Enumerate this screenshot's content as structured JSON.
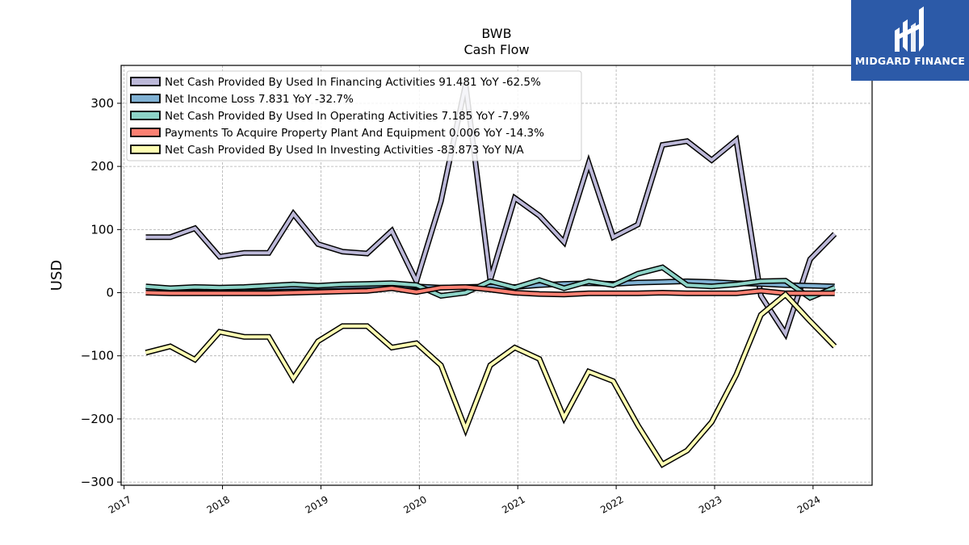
{
  "chart_data": {
    "type": "line",
    "title": "BWB",
    "subtitle": "Cash Flow",
    "ylabel": "USD",
    "xlabel": "",
    "ylim": [
      -305,
      360
    ],
    "xlim": [
      2016.97,
      2024.6
    ],
    "yticks": [
      -300,
      -200,
      -100,
      0,
      100,
      200,
      300
    ],
    "ytick_labels": [
      "−300",
      "−200",
      "−100",
      "0",
      "100",
      "200",
      "300"
    ],
    "xticks": [
      2017,
      2018,
      2019,
      2020,
      2021,
      2022,
      2023,
      2024
    ],
    "xtick_labels": [
      "2017",
      "2018",
      "2019",
      "2020",
      "2021",
      "2022",
      "2023",
      "2024"
    ],
    "grid": true,
    "legend_position": "top-left",
    "x": [
      2017.22,
      2017.47,
      2017.72,
      2017.97,
      2018.22,
      2018.47,
      2018.72,
      2018.97,
      2019.22,
      2019.47,
      2019.72,
      2019.97,
      2020.22,
      2020.47,
      2020.72,
      2020.97,
      2021.22,
      2021.47,
      2021.72,
      2021.97,
      2022.22,
      2022.47,
      2022.72,
      2022.97,
      2023.22,
      2023.47,
      2023.72,
      2023.97,
      2024.22
    ],
    "series": [
      {
        "name": "Net Cash Provided By Used In Financing Activities  91.481 YoY -62.5%",
        "color": "#bcb8d8",
        "values": [
          88,
          88,
          102,
          57,
          63,
          63,
          125,
          77,
          65,
          62,
          98,
          18,
          145,
          330,
          20,
          150,
          122,
          80,
          205,
          88,
          108,
          234,
          240,
          210,
          242,
          -5,
          -65,
          53,
          93
        ]
      },
      {
        "name": "Net Income Loss  7.831 YoY -32.7%",
        "color": "#80b1d3",
        "values": [
          5,
          6,
          7,
          7,
          8,
          8,
          9,
          9,
          10,
          11,
          12,
          10,
          8,
          9,
          10,
          9,
          12,
          14,
          15,
          14,
          16,
          17,
          18,
          17,
          15,
          14,
          12,
          11,
          10
        ]
      },
      {
        "name": "Net Cash Provided By Used In Operating Activities  7.185 YoY -7.9%",
        "color": "#8dd3c7",
        "values": [
          10,
          7,
          9,
          8,
          9,
          11,
          13,
          11,
          13,
          14,
          15,
          12,
          -5,
          0,
          18,
          8,
          20,
          7,
          18,
          12,
          30,
          40,
          12,
          10,
          13,
          18,
          19,
          -8,
          8
        ]
      },
      {
        "name": "Payments To Acquire Property Plant And Equipment  0.006 YoY -14.3%",
        "color": "#fb8072",
        "values": [
          0,
          -1,
          -1,
          -1,
          -1,
          -1,
          0,
          1,
          2,
          3,
          7,
          1,
          8,
          9,
          5,
          0,
          -2,
          -3,
          -1,
          -1,
          -1,
          0,
          -1,
          -1,
          -1,
          3,
          -1,
          -1,
          -1
        ]
      },
      {
        "name": "Net Cash Provided By Used In Investing Activities  -83.873 YoY N/A",
        "color": "#ffffb3",
        "values": [
          -95,
          -85,
          -106,
          -62,
          -70,
          -70,
          -136,
          -77,
          -53,
          -53,
          -87,
          -80,
          -115,
          -216,
          -115,
          -87,
          -105,
          -198,
          -125,
          -140,
          -210,
          -272,
          -250,
          -205,
          -130,
          -35,
          -3,
          -45,
          -85
        ]
      }
    ]
  },
  "logo": {
    "text": "MIDGARD FINANCE",
    "color": "#2c5aa8"
  }
}
